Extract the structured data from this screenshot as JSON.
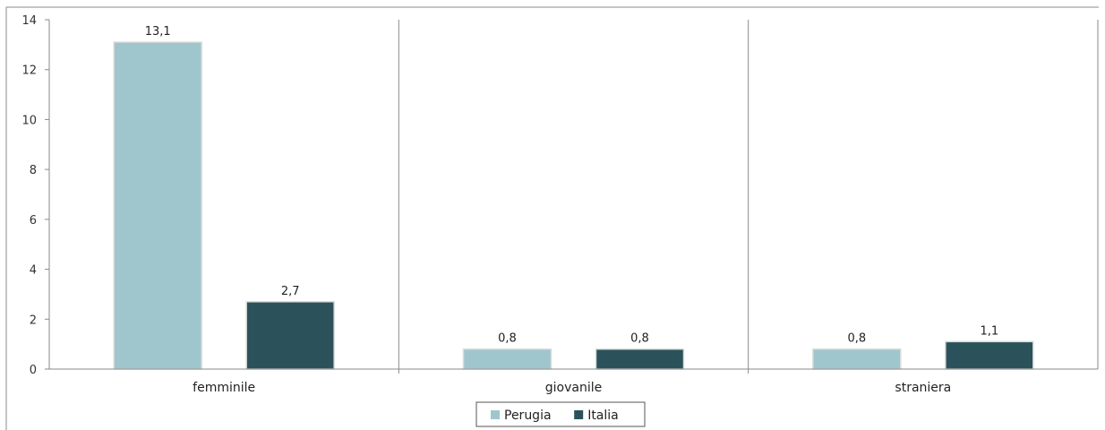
{
  "chart_data": {
    "type": "bar",
    "categories": [
      "femminile",
      "giovanile",
      "straniera"
    ],
    "series": [
      {
        "name": "Perugia",
        "color": "#9fc6cd",
        "values": [
          13.1,
          0.8,
          0.8
        ],
        "labels": [
          "13,1",
          "0,8",
          "0,8"
        ]
      },
      {
        "name": "Italia",
        "color": "#2b525a",
        "values": [
          2.7,
          0.8,
          1.1
        ],
        "labels": [
          "2,7",
          "0,8",
          "1,1"
        ]
      }
    ],
    "ylim": [
      0,
      14
    ],
    "yticks": [
      "0",
      "2",
      "4",
      "6",
      "8",
      "10",
      "12",
      "14"
    ],
    "legend_position": "bottom-center",
    "grid": false,
    "title": "",
    "xlabel": "",
    "ylabel": ""
  }
}
